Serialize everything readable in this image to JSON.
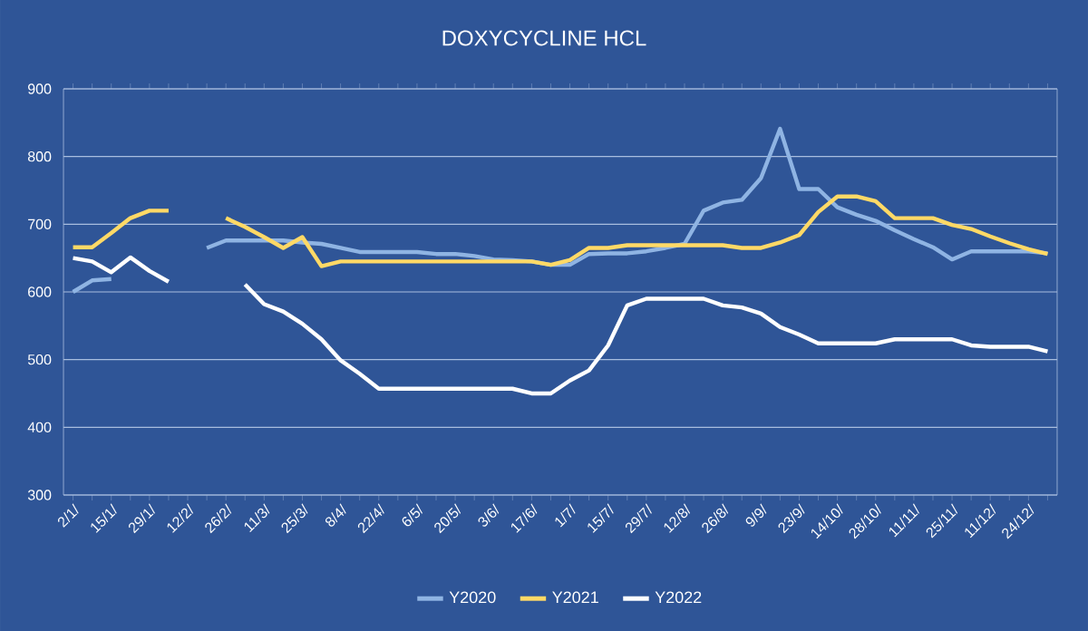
{
  "chart_data": {
    "type": "line",
    "title": "DOXYCYCLINE HCL",
    "categories": [
      "2/1/",
      null,
      "15/1/",
      null,
      "29/1/",
      null,
      "12/2/",
      null,
      "26/2/",
      null,
      "11/3/",
      null,
      "25/3/",
      null,
      "8/4/",
      null,
      "22/4/",
      null,
      "6/5/",
      null,
      "20/5/",
      null,
      "3/6/",
      null,
      "17/6/",
      null,
      "1/7/",
      null,
      "15/7/",
      null,
      "29/7/",
      null,
      "12/8/",
      null,
      "26/8/",
      null,
      "9/9/",
      null,
      "23/9/",
      null,
      "14/10/",
      null,
      "28/10/",
      null,
      "11/11/",
      null,
      "25/11/",
      null,
      "11/12/",
      null,
      "24/12/",
      null
    ],
    "series": [
      {
        "name": "Y2020",
        "color": "#8fb4e3",
        "values": [
          600,
          617,
          619,
          null,
          null,
          null,
          null,
          665,
          676,
          676,
          676,
          676,
          673,
          671,
          665,
          659,
          659,
          659,
          659,
          656,
          656,
          653,
          648,
          647,
          645,
          640,
          640,
          656,
          657,
          657,
          660,
          665,
          671,
          720,
          732,
          736,
          768,
          841,
          752,
          752,
          725,
          714,
          705,
          691,
          678,
          666,
          648,
          660,
          660,
          660,
          660,
          657
        ]
      },
      {
        "name": "Y2021",
        "color": "#ffd966",
        "values": [
          666,
          666,
          687,
          709,
          720,
          720,
          null,
          null,
          709,
          696,
          681,
          665,
          681,
          638,
          645,
          645,
          645,
          645,
          645,
          645,
          645,
          645,
          645,
          645,
          645,
          640,
          647,
          665,
          665,
          669,
          669,
          669,
          669,
          669,
          669,
          665,
          665,
          673,
          684,
          718,
          741,
          741,
          734,
          709,
          709,
          709,
          699,
          693,
          682,
          672,
          663,
          656
        ]
      },
      {
        "name": "Y2022",
        "color": "#ffffff",
        "values": [
          650,
          645,
          629,
          651,
          631,
          615,
          null,
          null,
          null,
          611,
          582,
          571,
          553,
          530,
          499,
          479,
          457,
          457,
          457,
          457,
          457,
          457,
          457,
          457,
          450,
          450,
          469,
          484,
          521,
          580,
          590,
          590,
          590,
          590,
          580,
          577,
          568,
          548,
          537,
          524,
          524,
          524,
          524,
          530,
          530,
          530,
          530,
          521,
          519,
          519,
          519,
          512
        ]
      }
    ],
    "ylim": [
      300,
      900
    ],
    "yticks": [
      300,
      400,
      500,
      600,
      700,
      800,
      900
    ],
    "grid": "y",
    "legend": "bottom",
    "line_style": "solid",
    "marker": "none"
  }
}
